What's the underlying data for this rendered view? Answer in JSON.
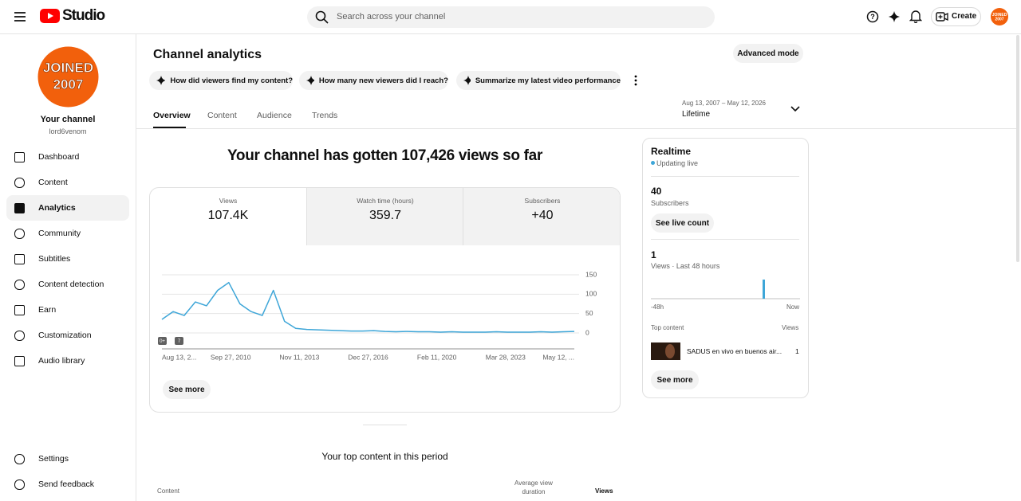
{
  "header": {
    "logo_text": "Studio",
    "search_placeholder": "Search across your channel",
    "create": "Create",
    "avatar_lines": [
      "JOINED",
      "2007"
    ]
  },
  "sidebar": {
    "avatar_lines": [
      "JOINED",
      "2007"
    ],
    "channel_name": "Your channel",
    "handle": "lord6venom",
    "nav": [
      "Dashboard",
      "Content",
      "Analytics",
      "Community",
      "Subtitles",
      "Content detection",
      "Earn",
      "Customization",
      "Audio library"
    ],
    "bottom": [
      "Settings",
      "Send feedback"
    ]
  },
  "page": {
    "title": "Channel analytics",
    "advanced_mode": "Advanced mode",
    "prompts": [
      "How did viewers find my content?",
      "How many new viewers did I reach?",
      "Summarize my latest video performance"
    ],
    "tabs": [
      "Overview",
      "Content",
      "Audience",
      "Trends"
    ],
    "date_range": "Aug 13, 2007 – May 12, 2026",
    "period": "Lifetime"
  },
  "summary": {
    "headline": "Your channel has gotten 107,426 views so far",
    "metrics": [
      {
        "label": "Views",
        "value": "107.4K"
      },
      {
        "label": "Watch time (hours)",
        "value": "359.7"
      },
      {
        "label": "Subscribers",
        "value": "+40"
      }
    ],
    "see_more": "See more"
  },
  "chart_data": {
    "type": "line",
    "color": "#3ea6d8",
    "categories": [
      null,
      null,
      null,
      null,
      null,
      null,
      null,
      null,
      null,
      null,
      null,
      null,
      null,
      null,
      null,
      null,
      null,
      null,
      null,
      null,
      null,
      null,
      null,
      null,
      null,
      null,
      null,
      null,
      null,
      null,
      null,
      null,
      null,
      null,
      null,
      null,
      null,
      null
    ],
    "values": [
      35,
      55,
      45,
      80,
      70,
      110,
      130,
      75,
      55,
      45,
      110,
      30,
      12,
      9,
      8,
      7,
      6,
      5,
      5,
      6,
      4,
      3,
      4,
      3,
      3,
      2,
      3,
      2,
      2,
      2,
      3,
      2,
      2,
      2,
      3,
      2,
      3,
      4
    ],
    "ylim": [
      0,
      150
    ],
    "yticks": [
      0,
      50,
      100,
      150
    ],
    "x_labels": [
      "Aug 13, 2...",
      "Sep 27, 2010",
      "Nov 11, 2013",
      "Dec 27, 2016",
      "Feb 11, 2020",
      "Mar 28, 2023",
      "May 12, ..."
    ],
    "markers": [
      "0+",
      "7"
    ],
    "grid": true
  },
  "realtime": {
    "title": "Realtime",
    "status": "Updating live",
    "subscribers": "40",
    "subscribers_label": "Subscribers",
    "see_live_count": "See live count",
    "views_48h": 1,
    "views_label": "Views · Last 48 hours",
    "axis_start": "-48h",
    "axis_end": "Now",
    "top_content_label": "Top content",
    "views_header": "Views",
    "top_item": {
      "title": "SADUS en vivo en buenos air...",
      "views": "1"
    },
    "see_more": "See more"
  },
  "top_content": {
    "heading": "Your top content in this period",
    "columns": [
      "Content",
      "Average view duration",
      "Views"
    ]
  }
}
